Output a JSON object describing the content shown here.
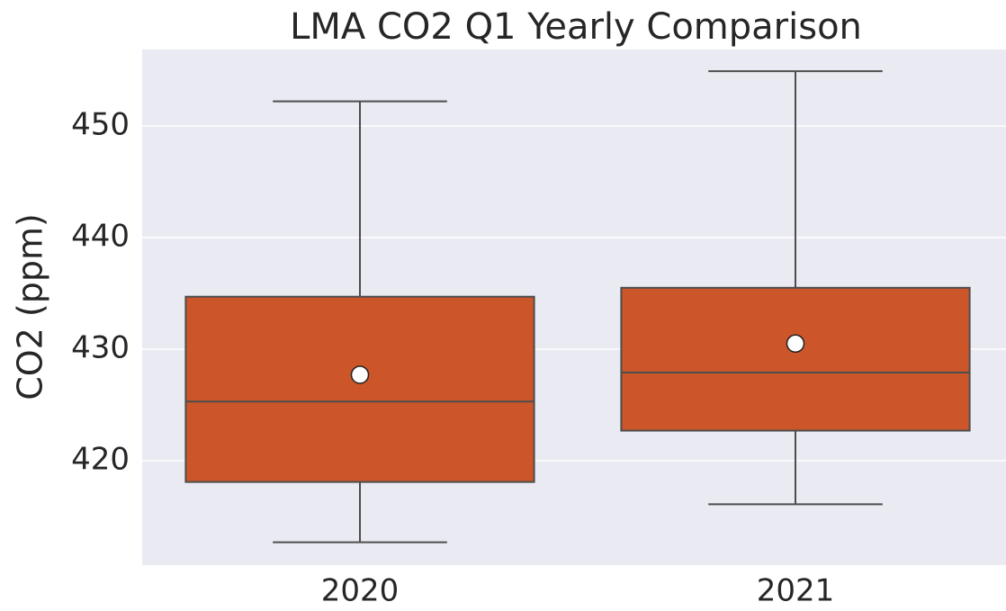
{
  "chart_data": {
    "type": "box",
    "title": "LMA CO2 Q1 Yearly Comparison",
    "y_label": "CO2 (ppm)",
    "categories": [
      "2020",
      "2021"
    ],
    "color": "#cc5629",
    "min": [
      412.7,
      416.1
    ],
    "q1": [
      418.1,
      422.7
    ],
    "median": [
      425.3,
      427.9
    ],
    "q3": [
      434.7,
      435.5
    ],
    "max": [
      452.2,
      454.9
    ],
    "mean": [
      427.7,
      430.5
    ],
    "ylim": [
      410.65,
      456.85
    ],
    "yticks": [
      420,
      430,
      440,
      450
    ],
    "grid": true
  }
}
